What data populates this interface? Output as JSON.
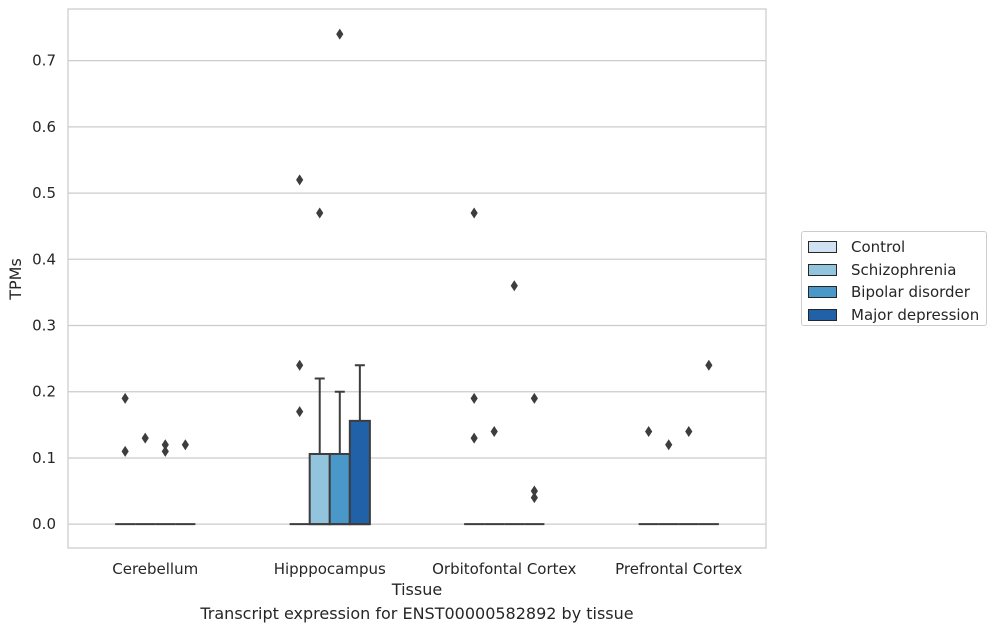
{
  "caption": "Transcript expression for ENST00000582892 by tissue",
  "chart_data": {
    "type": "box",
    "xlabel": "Tissue",
    "ylabel": "TPMs",
    "ylim": [
      -0.036,
      0.778
    ],
    "yticks": [
      "0.0",
      "0.1",
      "0.2",
      "0.3",
      "0.4",
      "0.5",
      "0.6",
      "0.7"
    ],
    "grid": "horizontal",
    "legend_placement": "right",
    "categories": [
      "Cerebellum",
      "Hipppocampus",
      "Orbitofontal Cortex",
      "Prefrontal Cortex"
    ],
    "series": [
      {
        "name": "Control",
        "color": "#cfe1f2",
        "boxes": [
          {
            "q1": 0,
            "median": 0,
            "q3": 0,
            "whislo": 0,
            "whishi": 0,
            "fliers": [
              0.19,
              0.11
            ]
          },
          {
            "q1": 0,
            "median": 0,
            "q3": 0,
            "whislo": 0,
            "whishi": 0,
            "fliers": [
              0.52,
              0.24,
              0.17
            ]
          },
          {
            "q1": 0,
            "median": 0,
            "q3": 0,
            "whislo": 0,
            "whishi": 0,
            "fliers": [
              0.47,
              0.19,
              0.13
            ]
          },
          {
            "q1": 0,
            "median": 0,
            "q3": 0,
            "whislo": 0,
            "whishi": 0,
            "fliers": [
              0.14
            ]
          }
        ]
      },
      {
        "name": "Schizophrenia",
        "color": "#93c4de",
        "boxes": [
          {
            "q1": 0,
            "median": 0,
            "q3": 0,
            "whislo": 0,
            "whishi": 0,
            "fliers": [
              0.13
            ]
          },
          {
            "q1": 0,
            "median": 0,
            "q3": 0.106,
            "whislo": 0,
            "whishi": 0.22,
            "fliers": [
              0.47
            ]
          },
          {
            "q1": 0,
            "median": 0,
            "q3": 0,
            "whislo": 0,
            "whishi": 0,
            "fliers": [
              0.14
            ]
          },
          {
            "q1": 0,
            "median": 0,
            "q3": 0,
            "whislo": 0,
            "whishi": 0,
            "fliers": [
              0.12
            ]
          }
        ]
      },
      {
        "name": "Bipolar disorder",
        "color": "#4a98c9",
        "boxes": [
          {
            "q1": 0,
            "median": 0,
            "q3": 0,
            "whislo": 0,
            "whishi": 0,
            "fliers": [
              0.12,
              0.11
            ]
          },
          {
            "q1": 0,
            "median": 0,
            "q3": 0.106,
            "whislo": 0,
            "whishi": 0.2,
            "fliers": [
              0.74
            ]
          },
          {
            "q1": 0,
            "median": 0,
            "q3": 0,
            "whislo": 0,
            "whishi": 0,
            "fliers": [
              0.36
            ]
          },
          {
            "q1": 0,
            "median": 0,
            "q3": 0,
            "whislo": 0,
            "whishi": 0,
            "fliers": [
              0.14
            ]
          }
        ]
      },
      {
        "name": "Major depression",
        "color": "#2161a8",
        "boxes": [
          {
            "q1": 0,
            "median": 0,
            "q3": 0,
            "whislo": 0,
            "whishi": 0,
            "fliers": [
              0.12
            ]
          },
          {
            "q1": 0,
            "median": 0,
            "q3": 0.156,
            "whislo": 0,
            "whishi": 0.24,
            "fliers": []
          },
          {
            "q1": 0,
            "median": 0,
            "q3": 0,
            "whislo": 0,
            "whishi": 0,
            "fliers": [
              0.19,
              0.05,
              0.04
            ]
          },
          {
            "q1": 0,
            "median": 0,
            "q3": 0,
            "whislo": 0,
            "whishi": 0,
            "fliers": [
              0.24
            ]
          }
        ]
      }
    ]
  }
}
